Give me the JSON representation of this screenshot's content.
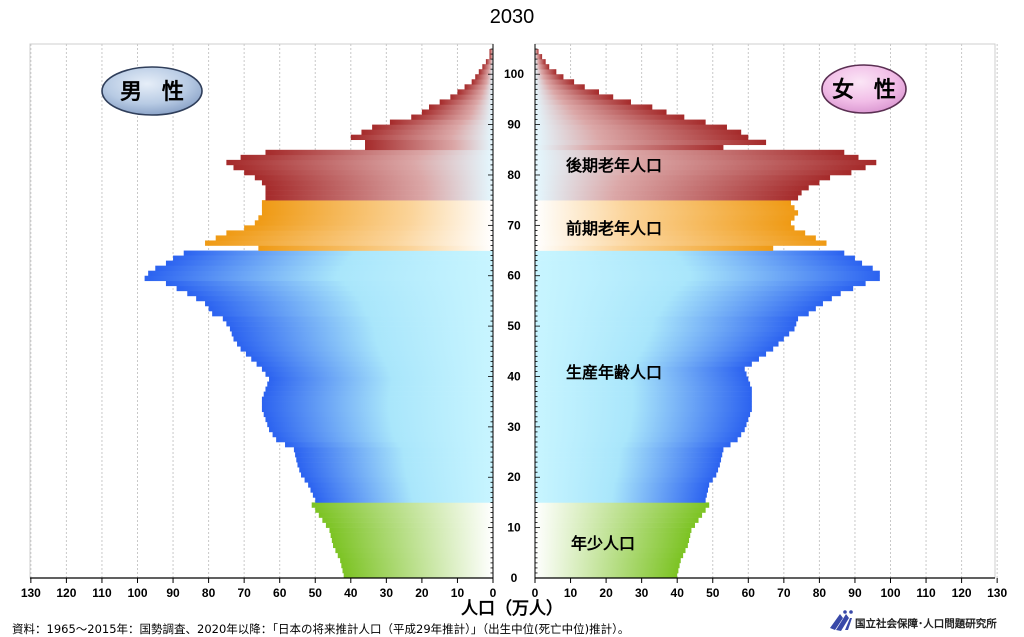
{
  "chart_data": {
    "type": "population-pyramid",
    "title": "2030",
    "xlabel": "人口（万人）",
    "x_ticks_left": [
      "130",
      "120",
      "110",
      "100",
      "90",
      "80",
      "70",
      "60",
      "50",
      "40",
      "30",
      "20",
      "10",
      "0"
    ],
    "x_ticks_right": [
      "0",
      "10",
      "20",
      "30",
      "40",
      "50",
      "60",
      "70",
      "80",
      "90",
      "100",
      "110",
      "120",
      "130"
    ],
    "xlim": [
      0,
      130
    ],
    "ylim": [
      0,
      105
    ],
    "age_ticks": [
      "0",
      "10",
      "20",
      "30",
      "40",
      "50",
      "60",
      "70",
      "80",
      "90",
      "100"
    ],
    "sex_labels": {
      "male": "男 性",
      "female": "女 性"
    },
    "age_groups": [
      {
        "label": "年少人口",
        "from": 0,
        "to": 14,
        "color": "#7cc323"
      },
      {
        "label": "生産年齢人口",
        "from": 15,
        "to": 64,
        "color": "#2b62f0"
      },
      {
        "label": "前期老年人口",
        "from": 65,
        "to": 74,
        "color": "#ef9a14"
      },
      {
        "label": "後期老年人口",
        "from": 75,
        "to": 105,
        "color": "#a52a2a"
      }
    ],
    "male_key": [
      [
        0,
        42
      ],
      [
        3,
        43
      ],
      [
        6,
        45
      ],
      [
        9,
        46
      ],
      [
        11,
        48
      ],
      [
        13,
        50
      ],
      [
        14,
        51
      ],
      [
        15,
        50
      ],
      [
        18,
        52
      ],
      [
        20,
        54
      ],
      [
        22,
        55
      ],
      [
        25,
        56
      ],
      [
        27,
        61
      ],
      [
        29,
        63
      ],
      [
        31,
        64
      ],
      [
        33,
        65
      ],
      [
        35,
        65
      ],
      [
        37,
        64
      ],
      [
        39,
        63
      ],
      [
        41,
        65
      ],
      [
        43,
        68
      ],
      [
        45,
        71
      ],
      [
        47,
        73
      ],
      [
        49,
        74
      ],
      [
        51,
        76
      ],
      [
        52,
        79
      ],
      [
        54,
        81
      ],
      [
        56,
        86
      ],
      [
        58,
        92
      ],
      [
        59,
        98
      ],
      [
        60,
        97
      ],
      [
        61,
        95
      ],
      [
        62,
        92
      ],
      [
        63,
        90
      ],
      [
        64,
        87
      ],
      [
        65,
        66
      ],
      [
        66,
        81
      ],
      [
        67,
        78
      ],
      [
        68,
        75
      ],
      [
        69,
        70
      ],
      [
        70,
        67
      ],
      [
        71,
        66
      ],
      [
        72,
        65
      ],
      [
        73,
        65
      ],
      [
        74,
        65
      ],
      [
        75,
        64
      ],
      [
        76,
        64
      ],
      [
        77,
        64
      ],
      [
        78,
        65
      ],
      [
        79,
        67
      ],
      [
        80,
        70
      ],
      [
        81,
        73
      ],
      [
        82,
        75
      ],
      [
        83,
        71
      ],
      [
        84,
        64
      ],
      [
        85,
        36
      ],
      [
        86,
        36
      ],
      [
        87,
        40
      ],
      [
        88,
        37
      ],
      [
        89,
        34
      ],
      [
        90,
        29
      ],
      [
        91,
        23
      ],
      [
        92,
        20
      ],
      [
        93,
        18
      ],
      [
        94,
        15
      ],
      [
        95,
        12
      ],
      [
        96,
        10
      ],
      [
        97,
        8
      ],
      [
        98,
        6
      ],
      [
        99,
        5
      ],
      [
        100,
        4
      ],
      [
        101,
        3
      ],
      [
        102,
        2
      ],
      [
        103,
        1
      ],
      [
        104,
        1
      ],
      [
        105,
        0
      ]
    ],
    "female_key": [
      [
        0,
        40
      ],
      [
        3,
        41
      ],
      [
        6,
        43
      ],
      [
        9,
        44
      ],
      [
        11,
        46
      ],
      [
        13,
        48
      ],
      [
        14,
        49
      ],
      [
        15,
        48
      ],
      [
        18,
        49
      ],
      [
        20,
        51
      ],
      [
        22,
        52
      ],
      [
        25,
        53
      ],
      [
        27,
        57
      ],
      [
        29,
        59
      ],
      [
        31,
        60
      ],
      [
        33,
        61
      ],
      [
        35,
        61
      ],
      [
        37,
        61
      ],
      [
        39,
        60
      ],
      [
        41,
        59
      ],
      [
        43,
        63
      ],
      [
        45,
        67
      ],
      [
        47,
        70
      ],
      [
        49,
        73
      ],
      [
        51,
        74
      ],
      [
        52,
        77
      ],
      [
        54,
        81
      ],
      [
        56,
        86
      ],
      [
        58,
        93
      ],
      [
        59,
        97
      ],
      [
        60,
        97
      ],
      [
        61,
        95
      ],
      [
        62,
        92
      ],
      [
        63,
        90
      ],
      [
        64,
        87
      ],
      [
        65,
        67
      ],
      [
        66,
        82
      ],
      [
        67,
        79
      ],
      [
        68,
        76
      ],
      [
        69,
        73
      ],
      [
        70,
        72
      ],
      [
        71,
        73
      ],
      [
        72,
        74
      ],
      [
        73,
        73
      ],
      [
        74,
        72
      ],
      [
        75,
        74
      ],
      [
        76,
        75
      ],
      [
        77,
        77
      ],
      [
        78,
        80
      ],
      [
        79,
        83
      ],
      [
        80,
        89
      ],
      [
        81,
        93
      ],
      [
        82,
        96
      ],
      [
        83,
        91
      ],
      [
        84,
        87
      ],
      [
        85,
        53
      ],
      [
        86,
        65
      ],
      [
        87,
        60
      ],
      [
        88,
        58
      ],
      [
        89,
        54
      ],
      [
        90,
        48
      ],
      [
        91,
        42
      ],
      [
        92,
        37
      ],
      [
        93,
        33
      ],
      [
        94,
        27
      ],
      [
        95,
        22
      ],
      [
        96,
        18
      ],
      [
        97,
        14
      ],
      [
        98,
        11
      ],
      [
        99,
        8
      ],
      [
        100,
        6
      ],
      [
        101,
        4
      ],
      [
        102,
        3
      ],
      [
        103,
        2
      ],
      [
        104,
        1
      ],
      [
        105,
        0
      ]
    ],
    "source": "資料：1965～2015年：国勢調査、2020年以降：「日本の将来推計人口（平成29年推計）」（出生中位(死亡中位)推計）。",
    "publisher": "国立社会保障･人口問題研究所"
  }
}
